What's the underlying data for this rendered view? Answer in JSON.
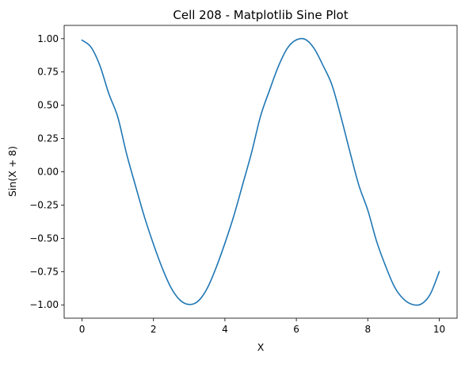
{
  "chart_data": {
    "type": "line",
    "title": "Cell 208 - Matplotlib Sine Plot",
    "xlabel": "X",
    "ylabel": "Sin(X + 8)",
    "xlim": [
      -0.5,
      10.5
    ],
    "ylim": [
      -1.1,
      1.1
    ],
    "xticks": [
      0,
      2,
      4,
      6,
      8,
      10
    ],
    "xtick_labels": [
      "0",
      "2",
      "4",
      "6",
      "8",
      "10"
    ],
    "yticks": [
      1.0,
      0.75,
      0.5,
      0.25,
      0.0,
      -0.25,
      -0.5,
      -0.75,
      -1.0
    ],
    "ytick_labels": [
      "1.00",
      "0.75",
      "0.50",
      "0.25",
      "0.00",
      "−0.25",
      "−0.50",
      "−0.75",
      "−1.00"
    ],
    "grid": false,
    "series": [
      {
        "color": "#1f77b4",
        "x": [
          0,
          0.25,
          0.5,
          0.75,
          1,
          1.25,
          1.5,
          1.75,
          2,
          2.25,
          2.5,
          2.75,
          3,
          3.25,
          3.5,
          3.75,
          4,
          4.25,
          4.5,
          4.75,
          5,
          5.25,
          5.5,
          5.75,
          6,
          6.25,
          6.5,
          6.75,
          7,
          7.25,
          7.5,
          7.75,
          8,
          8.25,
          8.5,
          8.75,
          9,
          9.25,
          9.5,
          9.75,
          10
        ],
        "y": [
          0.989,
          0.937,
          0.798,
          0.587,
          0.412,
          0.132,
          -0.108,
          -0.341,
          -0.544,
          -0.726,
          -0.875,
          -0.966,
          -0.997,
          -0.972,
          -0.878,
          -0.723,
          -0.537,
          -0.331,
          -0.093,
          0.148,
          0.42,
          0.613,
          0.794,
          0.929,
          0.991,
          0.995,
          0.926,
          0.797,
          0.65,
          0.412,
          0.15,
          -0.101,
          -0.288,
          -0.525,
          -0.709,
          -0.866,
          -0.956,
          -0.997,
          -0.993,
          -0.919,
          -0.751
        ]
      }
    ]
  }
}
